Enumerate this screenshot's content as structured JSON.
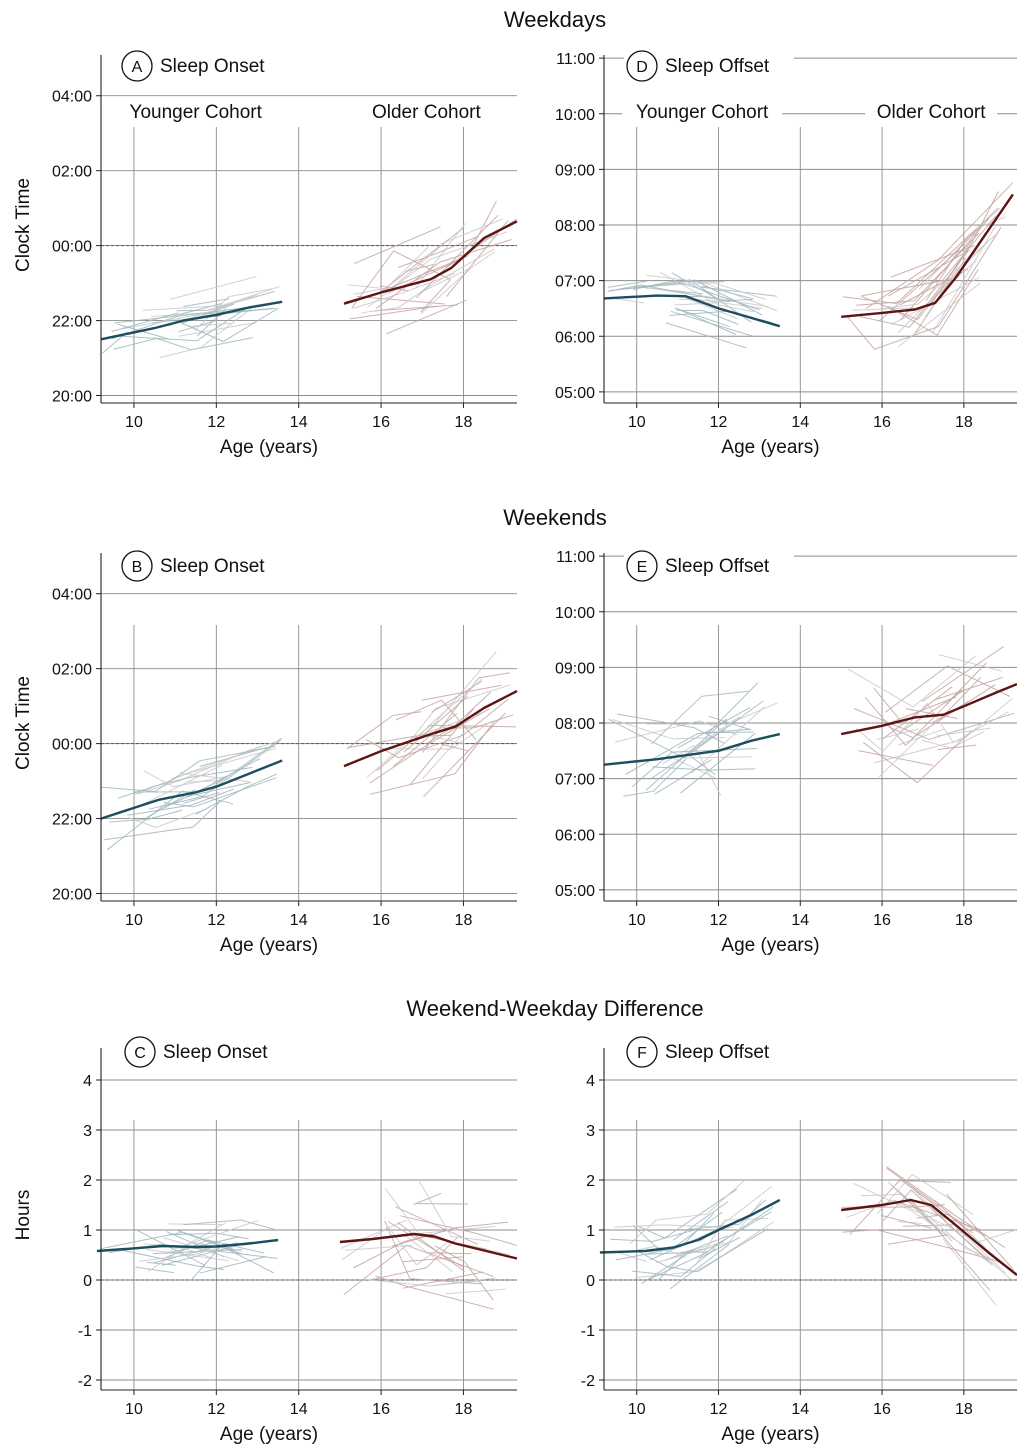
{
  "sections": [
    {
      "title": "Weekdays"
    },
    {
      "title": "Weekends"
    },
    {
      "title": "Weekend-Weekday Difference"
    }
  ],
  "cohort_labels": {
    "younger": "Younger Cohort",
    "older": "Older Cohort"
  },
  "colors": {
    "younger_mean": "#1d4e5f",
    "older_mean": "#5e1412",
    "younger_individual": "#9fb6bc",
    "older_individual": "#c4a3a1",
    "background_individual": "#c9c9c9",
    "grid": "#8c8c8c",
    "zero_line": "#555555"
  },
  "chart_data": [
    {
      "id": "A",
      "type": "line",
      "title": "Sleep Onset",
      "xlabel": "Age (years)",
      "ylabel": "Clock Time",
      "xlim": [
        9.2,
        19.3
      ],
      "ylim": [
        19.8,
        29.3
      ],
      "xticks": [
        10,
        12,
        14,
        16,
        18
      ],
      "yticks": [
        {
          "v": 20,
          "label": "20:00"
        },
        {
          "v": 22,
          "label": "22:00"
        },
        {
          "v": 24,
          "label": "00:00"
        },
        {
          "v": 26,
          "label": "02:00"
        },
        {
          "v": 28,
          "label": "04:00"
        }
      ],
      "reference_line": 24,
      "cohort_labels": true,
      "spread": {
        "younger": 0.7,
        "older": 1.1
      },
      "series": [
        {
          "cohort": "younger",
          "x": [
            9.2,
            10.5,
            11.2,
            12.0,
            12.8,
            13.6
          ],
          "y": [
            21.5,
            21.8,
            22.0,
            22.15,
            22.35,
            22.5
          ]
        },
        {
          "cohort": "older",
          "x": [
            15.1,
            16.0,
            17.2,
            17.7,
            18.5,
            19.3
          ],
          "y": [
            22.45,
            22.75,
            23.1,
            23.4,
            24.2,
            24.65
          ]
        }
      ]
    },
    {
      "id": "D",
      "type": "line",
      "title": "Sleep Offset",
      "xlabel": "Age (years)",
      "ylabel": "",
      "xlim": [
        9.2,
        19.3
      ],
      "ylim": [
        4.8,
        11.2
      ],
      "xticks": [
        10,
        12,
        14,
        16,
        18
      ],
      "yticks": [
        {
          "v": 5,
          "label": "05:00"
        },
        {
          "v": 6,
          "label": "06:00"
        },
        {
          "v": 7,
          "label": "07:00"
        },
        {
          "v": 8,
          "label": "08:00"
        },
        {
          "v": 9,
          "label": "09:00"
        },
        {
          "v": 10,
          "label": "10:00"
        },
        {
          "v": 11,
          "label": "11:00"
        }
      ],
      "reference_line": null,
      "cohort_labels": true,
      "spread": {
        "younger": 0.5,
        "older": 0.6
      },
      "series": [
        {
          "cohort": "younger",
          "x": [
            9.2,
            10.5,
            11.2,
            12.0,
            12.8,
            13.5
          ],
          "y": [
            6.68,
            6.73,
            6.72,
            6.5,
            6.33,
            6.18
          ]
        },
        {
          "cohort": "older",
          "x": [
            15.0,
            16.0,
            16.8,
            17.3,
            17.8,
            18.5,
            19.2
          ],
          "y": [
            6.35,
            6.42,
            6.48,
            6.6,
            7.05,
            7.8,
            8.55
          ]
        }
      ]
    },
    {
      "id": "B",
      "type": "line",
      "title": "Sleep Onset",
      "xlabel": "Age (years)",
      "ylabel": "Clock Time",
      "xlim": [
        9.2,
        19.3
      ],
      "ylim": [
        19.8,
        29.3
      ],
      "xticks": [
        10,
        12,
        14,
        16,
        18
      ],
      "yticks": [
        {
          "v": 20,
          "label": "20:00"
        },
        {
          "v": 22,
          "label": "22:00"
        },
        {
          "v": 24,
          "label": "00:00"
        },
        {
          "v": 26,
          "label": "02:00"
        },
        {
          "v": 28,
          "label": "04:00"
        }
      ],
      "reference_line": 24,
      "cohort_labels": false,
      "spread": {
        "younger": 0.8,
        "older": 1.3
      },
      "series": [
        {
          "cohort": "younger",
          "x": [
            9.2,
            10.6,
            11.5,
            12.0,
            12.8,
            13.6
          ],
          "y": [
            22.0,
            22.5,
            22.7,
            22.85,
            23.2,
            23.55
          ]
        },
        {
          "cohort": "older",
          "x": [
            15.1,
            16.0,
            17.2,
            17.8,
            18.5,
            19.3
          ],
          "y": [
            23.4,
            23.8,
            24.25,
            24.45,
            24.95,
            25.4
          ]
        }
      ]
    },
    {
      "id": "E",
      "type": "line",
      "title": "Sleep Offset",
      "xlabel": "Age (years)",
      "ylabel": "",
      "xlim": [
        9.2,
        19.3
      ],
      "ylim": [
        4.8,
        11.2
      ],
      "xticks": [
        10,
        12,
        14,
        16,
        18
      ],
      "yticks": [
        {
          "v": 5,
          "label": "05:00"
        },
        {
          "v": 6,
          "label": "06:00"
        },
        {
          "v": 7,
          "label": "07:00"
        },
        {
          "v": 8,
          "label": "08:00"
        },
        {
          "v": 9,
          "label": "09:00"
        },
        {
          "v": 10,
          "label": "10:00"
        },
        {
          "v": 11,
          "label": "11:00"
        }
      ],
      "reference_line": null,
      "cohort_labels": false,
      "spread": {
        "younger": 0.9,
        "older": 1.0
      },
      "series": [
        {
          "cohort": "younger",
          "x": [
            9.2,
            10.5,
            11.5,
            12.0,
            12.8,
            13.5
          ],
          "y": [
            7.25,
            7.35,
            7.45,
            7.5,
            7.68,
            7.8
          ]
        },
        {
          "cohort": "older",
          "x": [
            15.0,
            16.0,
            16.8,
            17.5,
            18.0,
            18.8,
            19.3
          ],
          "y": [
            7.8,
            7.95,
            8.1,
            8.15,
            8.3,
            8.55,
            8.7
          ]
        }
      ]
    },
    {
      "id": "C",
      "type": "line",
      "title": "Sleep Onset",
      "xlabel": "Age (years)",
      "ylabel": "Hours",
      "xlim": [
        9.2,
        19.3
      ],
      "ylim": [
        -2.2,
        4.8
      ],
      "xticks": [
        10,
        12,
        14,
        16,
        18
      ],
      "yticks": [
        {
          "v": -2,
          "label": "-2"
        },
        {
          "v": -1,
          "label": "-1"
        },
        {
          "v": 0,
          "label": "0"
        },
        {
          "v": 1,
          "label": "1"
        },
        {
          "v": 2,
          "label": "2"
        },
        {
          "v": 3,
          "label": "3"
        },
        {
          "v": 4,
          "label": "4"
        }
      ],
      "reference_line": 0,
      "cohort_labels": false,
      "spread": {
        "younger": 0.6,
        "older": 1.0
      },
      "series": [
        {
          "cohort": "younger",
          "x": [
            9.1,
            9.8,
            10.7,
            11.5,
            12.0,
            12.8,
            13.5
          ],
          "y": [
            0.58,
            0.62,
            0.68,
            0.66,
            0.67,
            0.73,
            0.8
          ]
        },
        {
          "cohort": "older",
          "x": [
            15.0,
            15.8,
            16.8,
            17.3,
            17.8,
            18.6,
            19.3
          ],
          "y": [
            0.76,
            0.82,
            0.92,
            0.87,
            0.73,
            0.57,
            0.43
          ]
        }
      ]
    },
    {
      "id": "F",
      "type": "line",
      "title": "Sleep Offset",
      "xlabel": "Age (years)",
      "ylabel": "",
      "xlim": [
        9.2,
        19.3
      ],
      "ylim": [
        -2.2,
        4.8
      ],
      "xticks": [
        10,
        12,
        14,
        16,
        18
      ],
      "yticks": [
        {
          "v": -2,
          "label": "-2"
        },
        {
          "v": -1,
          "label": "-1"
        },
        {
          "v": 0,
          "label": "0"
        },
        {
          "v": 1,
          "label": "1"
        },
        {
          "v": 2,
          "label": "2"
        },
        {
          "v": 3,
          "label": "3"
        },
        {
          "v": 4,
          "label": "4"
        }
      ],
      "reference_line": 0,
      "cohort_labels": false,
      "spread": {
        "younger": 0.7,
        "older": 0.8
      },
      "series": [
        {
          "cohort": "younger",
          "x": [
            9.1,
            10.2,
            10.9,
            11.5,
            12.0,
            12.8,
            13.5
          ],
          "y": [
            0.55,
            0.58,
            0.65,
            0.8,
            1.0,
            1.3,
            1.6
          ]
        },
        {
          "cohort": "older",
          "x": [
            15.0,
            16.0,
            16.7,
            17.2,
            17.8,
            18.6,
            19.3
          ],
          "y": [
            1.4,
            1.5,
            1.6,
            1.5,
            1.1,
            0.55,
            0.1
          ]
        }
      ]
    }
  ]
}
